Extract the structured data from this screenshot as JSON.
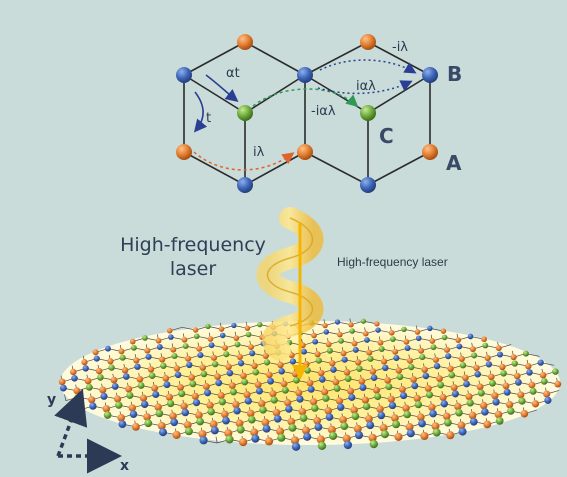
{
  "colors": {
    "background": "#c9dcd9",
    "site_A": "#e07a2c",
    "site_B": "#3b63b5",
    "site_C": "#6aa63a",
    "bond": "#2b2b2b",
    "hop_t": "#2a3f94",
    "hop_lambda": "#e0622c",
    "hop_alpha_lambda": "#2f9a56",
    "laser_beam": "#f2c640",
    "laser_spot": "#fff3a6"
  },
  "unit_cell": {
    "site_labels": {
      "B": "B",
      "C": "C",
      "A": "A"
    },
    "hopping_labels": {
      "alpha_t": "αt",
      "t": "t",
      "i_lambda": "iλ",
      "minus_i_alpha_lambda": "-iαλ",
      "i_alpha_lambda": "iαλ",
      "minus_i_lambda": "-iλ"
    }
  },
  "laser": {
    "title_line1": "High-frequency",
    "title_line2": "laser",
    "note": "High-frequency laser"
  },
  "axes": {
    "x": "x",
    "y": "y"
  }
}
